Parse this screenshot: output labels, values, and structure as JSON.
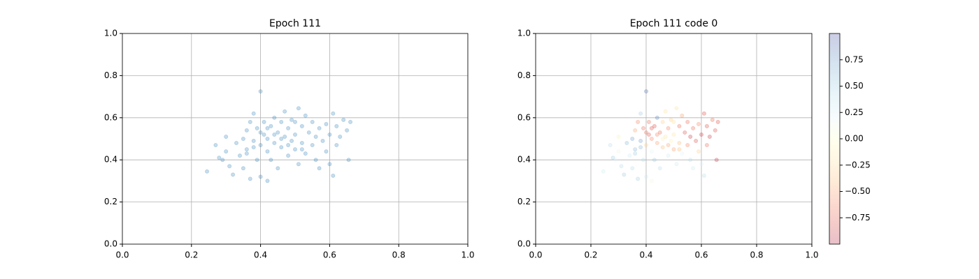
{
  "chart_data": [
    {
      "type": "scatter",
      "title": "Epoch 111",
      "color": "#1f77b4",
      "alpha": 0.25,
      "grid": true,
      "xlim": [
        0,
        1
      ],
      "ylim": [
        0,
        1
      ],
      "xticks": [
        {
          "value": 0,
          "label": "0.0"
        },
        0.2,
        0.4,
        0.6,
        0.8,
        {
          "value": 1,
          "label": "1.0"
        }
      ],
      "yticks": [
        {
          "value": 0,
          "label": "0.0"
        },
        0.2,
        0.4,
        0.6,
        0.8,
        {
          "value": 1,
          "label": "1.0"
        }
      ],
      "x": [
        0.245,
        0.27,
        0.28,
        0.29,
        0.3,
        0.3,
        0.31,
        0.32,
        0.33,
        0.34,
        0.35,
        0.35,
        0.36,
        0.36,
        0.37,
        0.37,
        0.38,
        0.38,
        0.39,
        0.39,
        0.4,
        0.4,
        0.4,
        0.41,
        0.41,
        0.42,
        0.42,
        0.42,
        0.43,
        0.43,
        0.44,
        0.44,
        0.45,
        0.45,
        0.46,
        0.46,
        0.47,
        0.47,
        0.48,
        0.48,
        0.49,
        0.49,
        0.5,
        0.5,
        0.51,
        0.51,
        0.52,
        0.52,
        0.53,
        0.53,
        0.54,
        0.55,
        0.55,
        0.56,
        0.56,
        0.57,
        0.57,
        0.58,
        0.59,
        0.59,
        0.6,
        0.6,
        0.61,
        0.61,
        0.62,
        0.62,
        0.63,
        0.64,
        0.65,
        0.655,
        0.66,
        0.44,
        0.46,
        0.48,
        0.42,
        0.5,
        0.38,
        0.52,
        0.36,
        0.4
      ],
      "y": [
        0.345,
        0.47,
        0.41,
        0.4,
        0.44,
        0.51,
        0.37,
        0.33,
        0.48,
        0.42,
        0.5,
        0.36,
        0.54,
        0.45,
        0.31,
        0.58,
        0.49,
        0.62,
        0.4,
        0.55,
        0.725,
        0.47,
        0.32,
        0.52,
        0.58,
        0.44,
        0.3,
        0.5,
        0.56,
        0.4,
        0.6,
        0.48,
        0.53,
        0.36,
        0.58,
        0.46,
        0.51,
        0.63,
        0.42,
        0.55,
        0.49,
        0.59,
        0.45,
        0.52,
        0.645,
        0.38,
        0.56,
        0.48,
        0.61,
        0.43,
        0.53,
        0.47,
        0.58,
        0.4,
        0.51,
        0.55,
        0.36,
        0.49,
        0.57,
        0.44,
        0.52,
        0.38,
        0.62,
        0.325,
        0.47,
        0.56,
        0.51,
        0.59,
        0.54,
        0.4,
        0.58,
        0.52,
        0.5,
        0.47,
        0.55,
        0.58,
        0.46,
        0.45,
        0.43,
        0.53
      ]
    },
    {
      "type": "scatter",
      "title": "Epoch 111 code 0",
      "alpha": 0.25,
      "grid": true,
      "colormap": [
        "#a50026",
        "#d73027",
        "#f46d43",
        "#fdae61",
        "#fee090",
        "#ffffbf",
        "#e0f3f8",
        "#abd9e9",
        "#74add1",
        "#4575b4",
        "#313695"
      ],
      "xlim": [
        0,
        1
      ],
      "ylim": [
        0,
        1
      ],
      "clim": [
        -1,
        1
      ],
      "xticks": [
        {
          "value": 0,
          "label": "0.0"
        },
        0.2,
        0.4,
        0.6,
        0.8,
        {
          "value": 1,
          "label": "1.0"
        }
      ],
      "yticks": [
        {
          "value": 0,
          "label": "0.0"
        },
        0.2,
        0.4,
        0.6,
        0.8,
        {
          "value": 1,
          "label": "1.0"
        }
      ],
      "cticks": [
        {
          "value": -0.75,
          "label": "−0.75"
        },
        {
          "value": -0.5,
          "label": "−0.50"
        },
        {
          "value": -0.25,
          "label": "−0.25"
        },
        {
          "value": 0,
          "label": "0.00"
        },
        0.25,
        {
          "value": 0.5,
          "label": "0.50"
        },
        0.75
      ],
      "x": [
        0.245,
        0.27,
        0.28,
        0.29,
        0.3,
        0.3,
        0.31,
        0.32,
        0.33,
        0.34,
        0.35,
        0.35,
        0.36,
        0.36,
        0.37,
        0.37,
        0.38,
        0.38,
        0.39,
        0.39,
        0.4,
        0.4,
        0.4,
        0.41,
        0.41,
        0.42,
        0.42,
        0.42,
        0.43,
        0.43,
        0.44,
        0.44,
        0.45,
        0.45,
        0.46,
        0.46,
        0.47,
        0.47,
        0.48,
        0.48,
        0.49,
        0.49,
        0.5,
        0.5,
        0.51,
        0.51,
        0.52,
        0.52,
        0.53,
        0.53,
        0.54,
        0.55,
        0.55,
        0.56,
        0.56,
        0.57,
        0.57,
        0.58,
        0.59,
        0.59,
        0.6,
        0.6,
        0.61,
        0.61,
        0.62,
        0.62,
        0.63,
        0.64,
        0.65,
        0.655,
        0.66,
        0.44,
        0.46,
        0.48,
        0.42,
        0.5,
        0.38,
        0.52,
        0.36,
        0.4
      ],
      "y": [
        0.345,
        0.47,
        0.41,
        0.4,
        0.44,
        0.51,
        0.37,
        0.33,
        0.48,
        0.42,
        0.5,
        0.36,
        0.54,
        0.45,
        0.31,
        0.58,
        0.49,
        0.62,
        0.4,
        0.55,
        0.725,
        0.47,
        0.32,
        0.52,
        0.58,
        0.44,
        0.3,
        0.5,
        0.56,
        0.4,
        0.6,
        0.48,
        0.53,
        0.36,
        0.58,
        0.46,
        0.51,
        0.63,
        0.42,
        0.55,
        0.49,
        0.59,
        0.45,
        0.52,
        0.645,
        0.38,
        0.56,
        0.48,
        0.61,
        0.43,
        0.53,
        0.47,
        0.58,
        0.4,
        0.51,
        0.55,
        0.36,
        0.49,
        0.57,
        0.44,
        0.52,
        0.38,
        0.62,
        0.325,
        0.47,
        0.56,
        0.51,
        0.59,
        0.54,
        0.4,
        0.58,
        0.52,
        0.5,
        0.47,
        0.55,
        0.58,
        0.46,
        0.45,
        0.43,
        0.53
      ],
      "c": [
        0.3,
        0.4,
        0.5,
        0.2,
        0.1,
        -0.1,
        0.4,
        0.5,
        0.6,
        0.3,
        0.7,
        0.4,
        -0.5,
        0.6,
        0.5,
        -0.6,
        0.7,
        0.5,
        0.4,
        -0.7,
        0.9,
        -0.3,
        0.3,
        -0.8,
        -0.7,
        0.2,
        0.1,
        -0.6,
        -0.8,
        0.5,
        0.8,
        -0.5,
        -0.7,
        0.4,
        -0.3,
        -0.4,
        -0.2,
        -0.2,
        0.3,
        -0.6,
        -0.1,
        -0.3,
        -0.5,
        -0.2,
        -0.2,
        0.3,
        -0.7,
        -0.4,
        -0.5,
        0.2,
        -0.8,
        -0.6,
        -0.7,
        0.4,
        -0.9,
        -0.7,
        0.3,
        -0.8,
        -0.6,
        -0.3,
        -0.9,
        0.2,
        -0.8,
        0.4,
        -0.7,
        -0.8,
        -0.9,
        -0.7,
        -0.8,
        -0.9,
        -0.8,
        -0.6,
        -0.1,
        -0.5,
        -0.8,
        -0.2,
        0.6,
        -0.4,
        0.5,
        -0.7
      ]
    }
  ]
}
